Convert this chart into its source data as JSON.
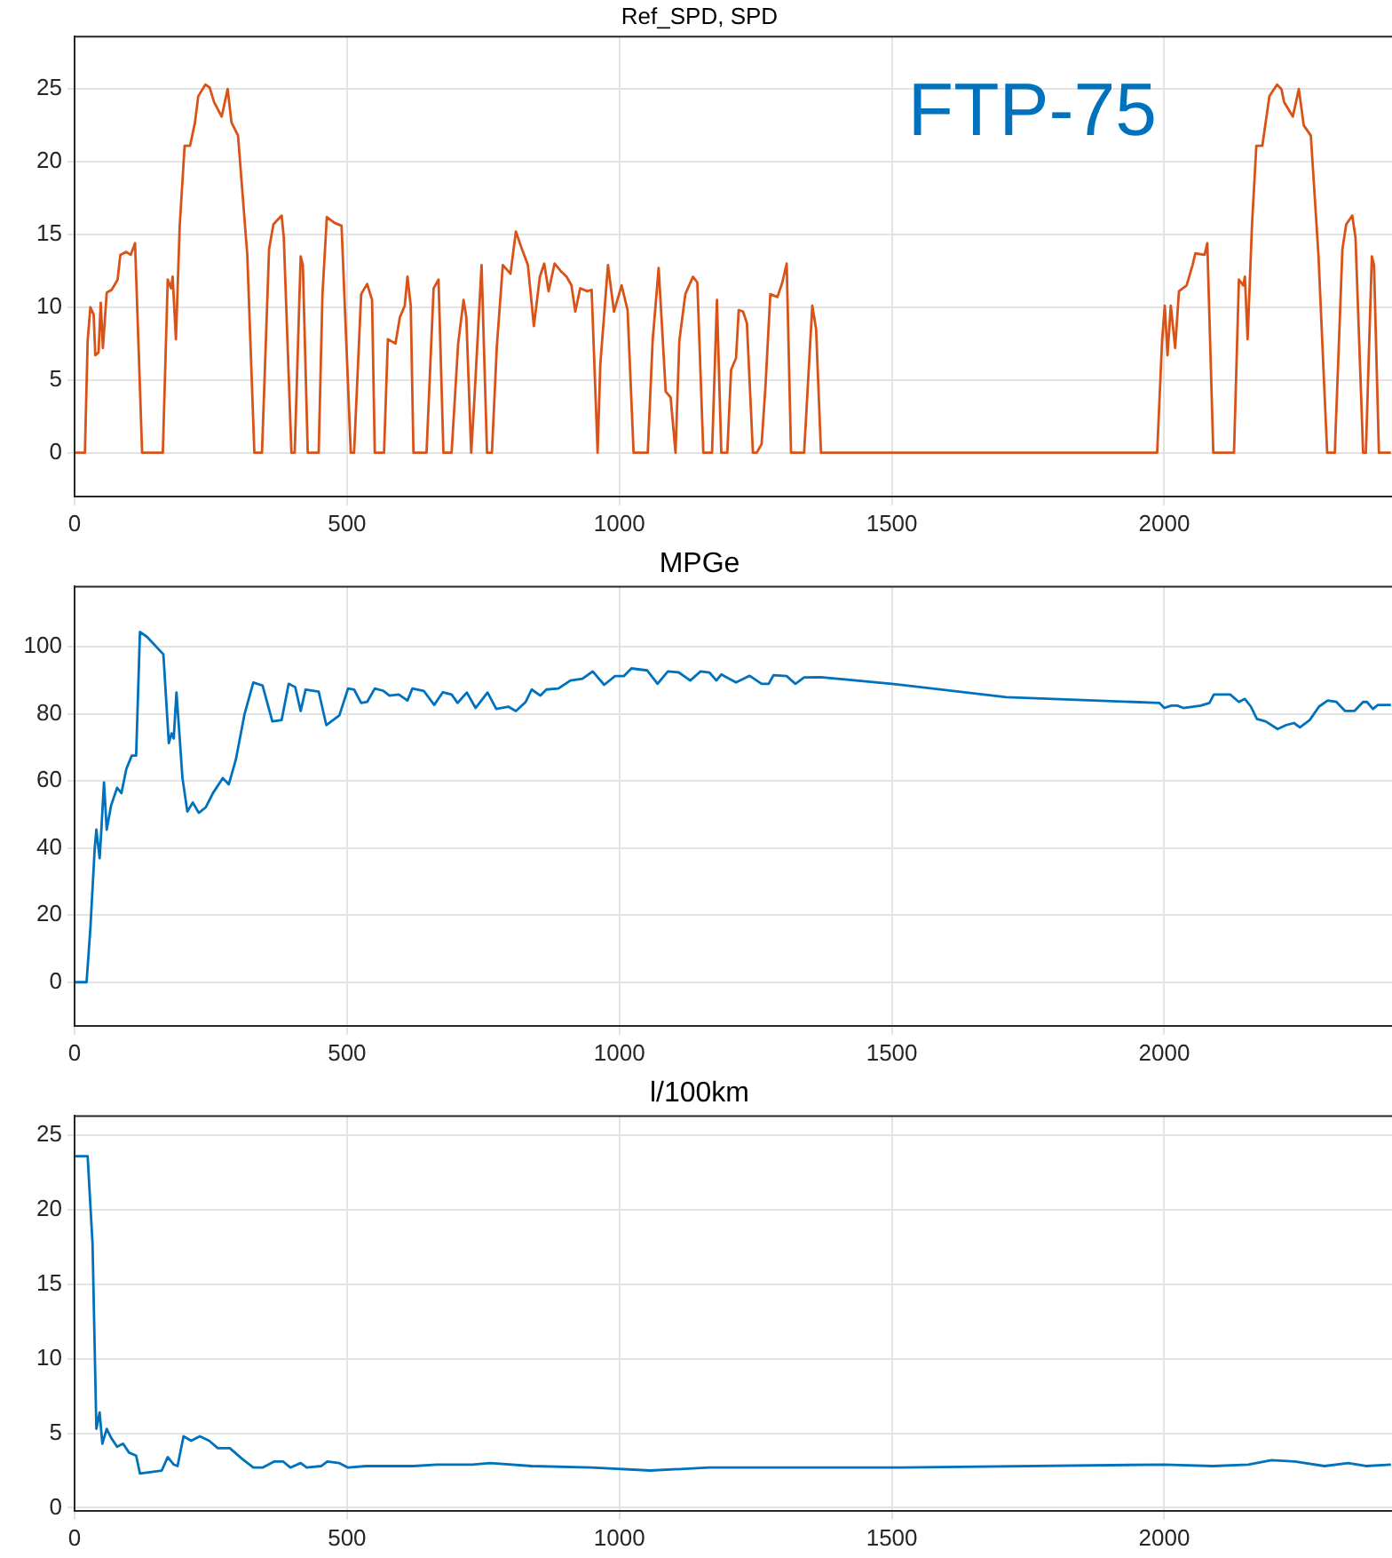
{
  "chart_data": [
    {
      "type": "line",
      "title": "Ref_SPD, SPD",
      "xlim": [
        0,
        2418
      ],
      "xticks": [
        0,
        500,
        1000,
        1500,
        2000
      ],
      "ylim": [
        -3,
        28.6
      ],
      "yticks": [
        0,
        5,
        10,
        15,
        20,
        25
      ],
      "grid": true,
      "legend": false,
      "marker": "none",
      "annotations": [
        "FTP-75"
      ],
      "series": [
        {
          "color": "#d95319",
          "x": [
            0,
            19,
            24,
            29,
            35,
            38,
            44,
            48,
            52,
            59,
            68,
            73,
            79,
            84,
            95,
            103,
            111,
            124,
            162,
            171,
            177,
            180,
            186,
            193,
            202,
            212,
            221,
            227,
            240,
            248,
            256,
            270,
            281,
            288,
            300,
            317,
            330,
            344,
            357,
            365,
            380,
            384,
            398,
            404,
            415,
            419,
            428,
            448,
            455,
            463,
            477,
            490,
            507,
            513,
            526,
            537,
            546,
            551,
            568,
            575,
            589,
            597,
            606,
            611,
            617,
            622,
            646,
            659,
            668,
            677,
            692,
            704,
            714,
            719,
            728,
            734,
            747,
            757,
            766,
            775,
            786,
            800,
            810,
            821,
            832,
            843,
            854,
            862,
            870,
            881,
            892,
            903,
            912,
            919,
            928,
            941,
            949,
            960,
            965,
            979,
            990,
            1004,
            1015,
            1026,
            1052,
            1061,
            1072,
            1085,
            1094,
            1103,
            1110,
            1121,
            1135,
            1143,
            1154,
            1170,
            1179,
            1187,
            1198,
            1205,
            1214,
            1219,
            1227,
            1234,
            1245,
            1252,
            1261,
            1268,
            1277,
            1290,
            1299,
            1307,
            1315,
            1339,
            1354,
            1361,
            1370,
            1987,
            1996,
            2001,
            2006,
            2012,
            2020,
            2027,
            2041,
            2052,
            2057,
            2074,
            2079,
            2090,
            2128,
            2137,
            2145,
            2148,
            2153,
            2161,
            2169,
            2180,
            2193,
            2207,
            2215,
            2220,
            2236,
            2247,
            2256,
            2269,
            2283,
            2299,
            2313,
            2327,
            2334,
            2345,
            2351,
            2365,
            2370,
            2381,
            2385,
            2394,
            2416
          ],
          "values": [
            0,
            0,
            7.7,
            10,
            9.5,
            6.7,
            6.9,
            10.3,
            7.2,
            11,
            11.2,
            11.5,
            11.9,
            13.6,
            13.8,
            13.6,
            14.4,
            0,
            0,
            11.9,
            11.3,
            12.1,
            7.8,
            15.6,
            21.1,
            21.1,
            22.7,
            24.5,
            25.3,
            25.1,
            24.1,
            23.1,
            25,
            22.7,
            21.8,
            13.6,
            0,
            0,
            14,
            15.7,
            16.3,
            14.8,
            0,
            0,
            13.5,
            12.9,
            0,
            0,
            10.9,
            16.2,
            15.8,
            15.6,
            0,
            0,
            10.9,
            11.6,
            10.5,
            0,
            0,
            7.8,
            7.5,
            9.3,
            10.1,
            12.1,
            10.1,
            0,
            0,
            11.3,
            11.9,
            0,
            0,
            7.5,
            10.5,
            9.3,
            0,
            3.8,
            12.9,
            0,
            0,
            7.3,
            12.9,
            12.3,
            15.2,
            14,
            12.9,
            8.7,
            12.1,
            13,
            11.1,
            13,
            12.5,
            12.1,
            11.5,
            9.7,
            11.3,
            11.1,
            11.2,
            0,
            6.1,
            12.9,
            9.7,
            11.5,
            9.8,
            0,
            0,
            7.7,
            12.7,
            4.2,
            3.8,
            0,
            7.7,
            10.9,
            12.1,
            11.7,
            0,
            0,
            10.5,
            0,
            0,
            5.7,
            6.5,
            9.8,
            9.7,
            8.9,
            0,
            0,
            0.6,
            4.5,
            10.9,
            10.7,
            11.7,
            13,
            0,
            0,
            10.1,
            8.5,
            0,
            0,
            7.7,
            10.1,
            6.7,
            10.1,
            7.2,
            11.1,
            11.5,
            12.9,
            13.7,
            13.6,
            14.4,
            0,
            0,
            11.9,
            11.5,
            12.1,
            7.8,
            15.6,
            21.1,
            21.1,
            24.5,
            25.3,
            25,
            24.1,
            23.1,
            25,
            22.5,
            21.8,
            13.6,
            0,
            0,
            14,
            15.7,
            16.3,
            14.8,
            0,
            0,
            13.5,
            12.9,
            0,
            0
          ]
        }
      ]
    },
    {
      "type": "line",
      "title": "MPGe",
      "xlim": [
        0,
        2418
      ],
      "xticks": [
        0,
        500,
        1000,
        1500,
        2000
      ],
      "ylim": [
        -13,
        118
      ],
      "yticks": [
        0,
        20,
        40,
        60,
        80,
        100
      ],
      "grid": true,
      "legend": false,
      "marker": "none",
      "series": [
        {
          "color": "#0072bd",
          "x": [
            0,
            22,
            29,
            37,
            40,
            46,
            49,
            54,
            59,
            67,
            78,
            86,
            95,
            105,
            113,
            120,
            133,
            163,
            173,
            178,
            182,
            187,
            193,
            198,
            207,
            217,
            228,
            241,
            254,
            272,
            283,
            296,
            312,
            328,
            345,
            363,
            380,
            393,
            405,
            415,
            424,
            448,
            462,
            486,
            502,
            513,
            526,
            537,
            551,
            567,
            578,
            595,
            611,
            620,
            641,
            660,
            676,
            692,
            703,
            720,
            736,
            758,
            774,
            796,
            810,
            828,
            839,
            855,
            866,
            888,
            910,
            932,
            951,
            972,
            992,
            1008,
            1022,
            1051,
            1070,
            1089,
            1109,
            1130,
            1149,
            1165,
            1178,
            1187,
            1214,
            1239,
            1261,
            1274,
            1283,
            1307,
            1323,
            1339,
            1369,
            1500,
            1710,
            1991,
            2000,
            2013,
            2024,
            2035,
            2067,
            2083,
            2091,
            2121,
            2137,
            2148,
            2159,
            2170,
            2186,
            2208,
            2224,
            2238,
            2249,
            2267,
            2284,
            2300,
            2316,
            2332,
            2349,
            2365,
            2372,
            2383,
            2392,
            2416
          ],
          "values": [
            0,
            0,
            16,
            40,
            45.5,
            37,
            45,
            59.6,
            45.5,
            52.7,
            58,
            56.4,
            63.6,
            67.6,
            67.6,
            104.5,
            103,
            97.8,
            71.3,
            74.2,
            72.7,
            86.4,
            72.7,
            60.9,
            50.9,
            53.6,
            50.5,
            52.2,
            56.4,
            60.9,
            59,
            66.4,
            80,
            89.4,
            88.5,
            77.8,
            78.2,
            89,
            88,
            80.9,
            87.3,
            86.7,
            76.7,
            79.6,
            87.6,
            87.3,
            83.3,
            83.6,
            87.6,
            86.9,
            85.5,
            85.8,
            84,
            87.6,
            86.9,
            82.7,
            86.5,
            85.8,
            83.3,
            86.4,
            81.8,
            86.4,
            81.5,
            82.2,
            80.9,
            83.6,
            87.3,
            85.5,
            87.3,
            87.6,
            90,
            90.5,
            92.7,
            88.7,
            91.3,
            91.3,
            93.6,
            93,
            89,
            92.7,
            92.4,
            90,
            92.7,
            92.4,
            90,
            91.8,
            89.4,
            91.4,
            89,
            89,
            91.6,
            91.3,
            89,
            90.9,
            91,
            89,
            85,
            83.3,
            81.8,
            82.5,
            82.5,
            81.8,
            82.5,
            83.3,
            85.8,
            85.8,
            83.6,
            84.5,
            82.2,
            78.5,
            77.8,
            75.5,
            76.7,
            77.3,
            76,
            78.2,
            82.2,
            84,
            83.6,
            80.9,
            80.9,
            83.6,
            83.6,
            81.5,
            82.7,
            82.7
          ]
        }
      ]
    },
    {
      "type": "line",
      "title": "l/100km",
      "xlim": [
        0,
        2418
      ],
      "xticks": [
        0,
        500,
        1000,
        1500,
        2000
      ],
      "ylim": [
        -0.2,
        26.3
      ],
      "yticks": [
        0,
        5,
        10,
        15,
        20,
        25
      ],
      "grid": true,
      "legend": false,
      "marker": "none",
      "series": [
        {
          "color": "#0072bd",
          "x": [
            0,
            24,
            33,
            40,
            46,
            51,
            59,
            67,
            78,
            89,
            100,
            113,
            120,
            160,
            171,
            182,
            189,
            200,
            214,
            230,
            247,
            263,
            285,
            307,
            328,
            345,
            366,
            383,
            396,
            415,
            426,
            453,
            464,
            486,
            502,
            535,
            622,
            665,
            730,
            763,
            839,
            948,
            1057,
            1165,
            1426,
            1500,
            1999,
            2089,
            2154,
            2197,
            2240,
            2294,
            2338,
            2370,
            2416
          ],
          "values": [
            23.6,
            23.6,
            17.7,
            5.3,
            6.4,
            4.3,
            5.3,
            4.7,
            4.1,
            4.3,
            3.7,
            3.5,
            2.3,
            2.5,
            3.4,
            2.9,
            2.8,
            4.8,
            4.5,
            4.8,
            4.5,
            4,
            4,
            3.3,
            2.7,
            2.7,
            3.1,
            3.1,
            2.7,
            3,
            2.7,
            2.8,
            3.1,
            3,
            2.7,
            2.8,
            2.8,
            2.9,
            2.9,
            3,
            2.8,
            2.7,
            2.5,
            2.7,
            2.7,
            2.7,
            2.9,
            2.8,
            2.9,
            3.2,
            3.1,
            2.8,
            3,
            2.8,
            2.9
          ]
        }
      ]
    }
  ]
}
